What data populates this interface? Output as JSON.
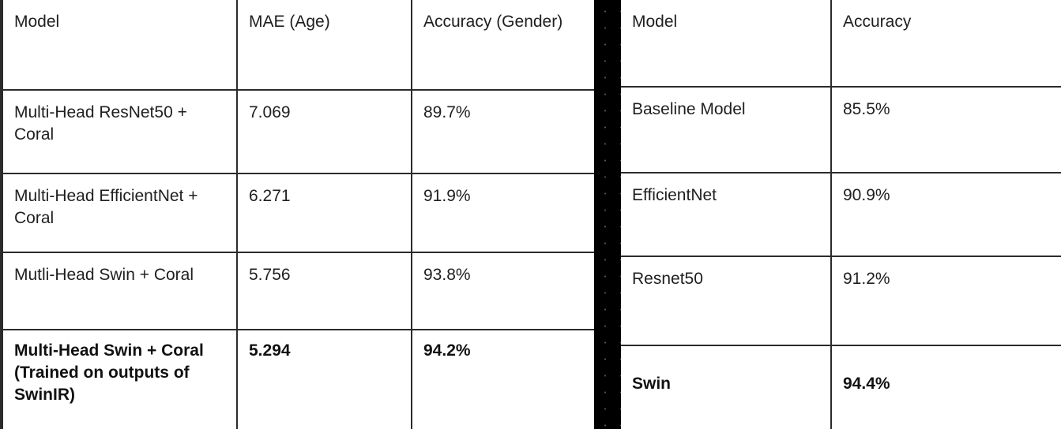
{
  "left_table": {
    "headers": [
      "Model",
      "MAE (Age)",
      "Accuracy (Gender)"
    ],
    "rows": [
      [
        "Multi-Head ResNet50 + Coral",
        "7.069",
        "89.7%"
      ],
      [
        "Multi-Head EfficientNet + Coral",
        "6.271",
        "91.9%"
      ],
      [
        "Mutli-Head Swin + Coral",
        "5.756",
        "93.8%"
      ],
      [
        "Multi-Head Swin + Coral (Trained on outputs of SwinIR)",
        "5.294",
        "94.2%"
      ]
    ]
  },
  "right_table": {
    "headers": [
      "Model",
      "Accuracy"
    ],
    "rows": [
      [
        "Baseline Model",
        "85.5%"
      ],
      [
        "EfficientNet",
        "90.9%"
      ],
      [
        "Resnet50",
        "91.2%"
      ],
      [
        "Swin",
        "94.4%"
      ]
    ]
  }
}
